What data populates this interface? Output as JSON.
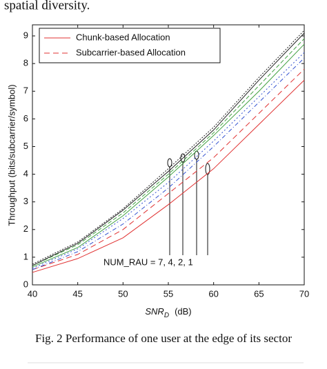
{
  "header_text": "spatial diversity.",
  "caption": "Fig. 2 Performance of one user at the edge of its sector",
  "chart_data": {
    "type": "line",
    "y_label": "Throughput (bits/subcarrier/symbol)",
    "x_label": {
      "main": "SNR",
      "sub": "D",
      "unit": "(dB)"
    },
    "annotation": "NUM_RAU = 7, 4, 2, 1",
    "x": [
      40,
      45,
      50,
      55,
      60,
      65,
      70
    ],
    "xlim": [
      40,
      70
    ],
    "xticks": [
      40,
      45,
      50,
      55,
      60,
      65,
      70
    ],
    "ylim": [
      0,
      9.4
    ],
    "yticks": [
      0,
      1,
      2,
      3,
      4,
      5,
      6,
      7,
      8,
      9
    ],
    "legend": [
      {
        "label": "Chunk-based Allocation",
        "color": "#e03030",
        "dash": "none"
      },
      {
        "label": "Subcarrier-based Allocation",
        "color": "#e03030",
        "dash": "8,5"
      }
    ],
    "series": [
      {
        "color": "#e03030",
        "dash": "none",
        "values": [
          0.45,
          0.95,
          1.7,
          2.9,
          4.2,
          5.8,
          7.4
        ]
      },
      {
        "color": "#e03030",
        "dash": "8,5",
        "values": [
          0.55,
          1.1,
          2.0,
          3.3,
          4.6,
          6.2,
          7.8
        ]
      },
      {
        "color": "#3050d0",
        "dash": "6,3,1,3",
        "values": [
          0.55,
          1.2,
          2.2,
          3.5,
          5.0,
          6.6,
          8.2
        ]
      },
      {
        "color": "#3050d0",
        "dash": "2,3",
        "values": [
          0.6,
          1.3,
          2.4,
          3.7,
          5.2,
          6.8,
          8.4
        ]
      },
      {
        "color": "#40a040",
        "dash": "none",
        "values": [
          0.65,
          1.35,
          2.5,
          3.9,
          5.4,
          7.0,
          8.7
        ]
      },
      {
        "color": "#40a040",
        "dash": "6,3",
        "values": [
          0.7,
          1.45,
          2.6,
          4.0,
          5.5,
          7.2,
          8.9
        ]
      },
      {
        "color": "#222222",
        "dash": "none",
        "values": [
          0.7,
          1.5,
          2.7,
          4.1,
          5.6,
          7.4,
          9.1
        ]
      },
      {
        "color": "#222222",
        "dash": "2,2",
        "values": [
          0.75,
          1.55,
          2.75,
          4.2,
          5.7,
          7.5,
          9.2
        ]
      }
    ]
  }
}
